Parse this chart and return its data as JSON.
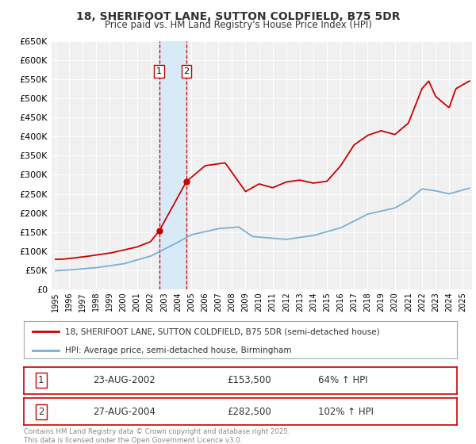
{
  "title_line1": "18, SHERIFOOT LANE, SUTTON COLDFIELD, B75 5DR",
  "title_line2": "Price paid vs. HM Land Registry's House Price Index (HPI)",
  "legend_label_red": "18, SHERIFOOT LANE, SUTTON COLDFIELD, B75 5DR (semi-detached house)",
  "legend_label_blue": "HPI: Average price, semi-detached house, Birmingham",
  "sale1_date": "23-AUG-2002",
  "sale1_price": "£153,500",
  "sale1_hpi": "64% ↑ HPI",
  "sale2_date": "27-AUG-2004",
  "sale2_price": "£282,500",
  "sale2_hpi": "102% ↑ HPI",
  "footnote": "Contains HM Land Registry data © Crown copyright and database right 2025.\nThis data is licensed under the Open Government Licence v3.0.",
  "ylim": [
    0,
    650000
  ],
  "yticks": [
    0,
    50000,
    100000,
    150000,
    200000,
    250000,
    300000,
    350000,
    400000,
    450000,
    500000,
    550000,
    600000,
    650000
  ],
  "sale1_year": 2002.646,
  "sale2_year": 2004.654,
  "sale1_value": 153500,
  "sale2_value": 282500,
  "bg_color": "#f0f0f0",
  "red_color": "#cc0000",
  "blue_color": "#7ab0d4",
  "shading_color": "#d8eaf8"
}
